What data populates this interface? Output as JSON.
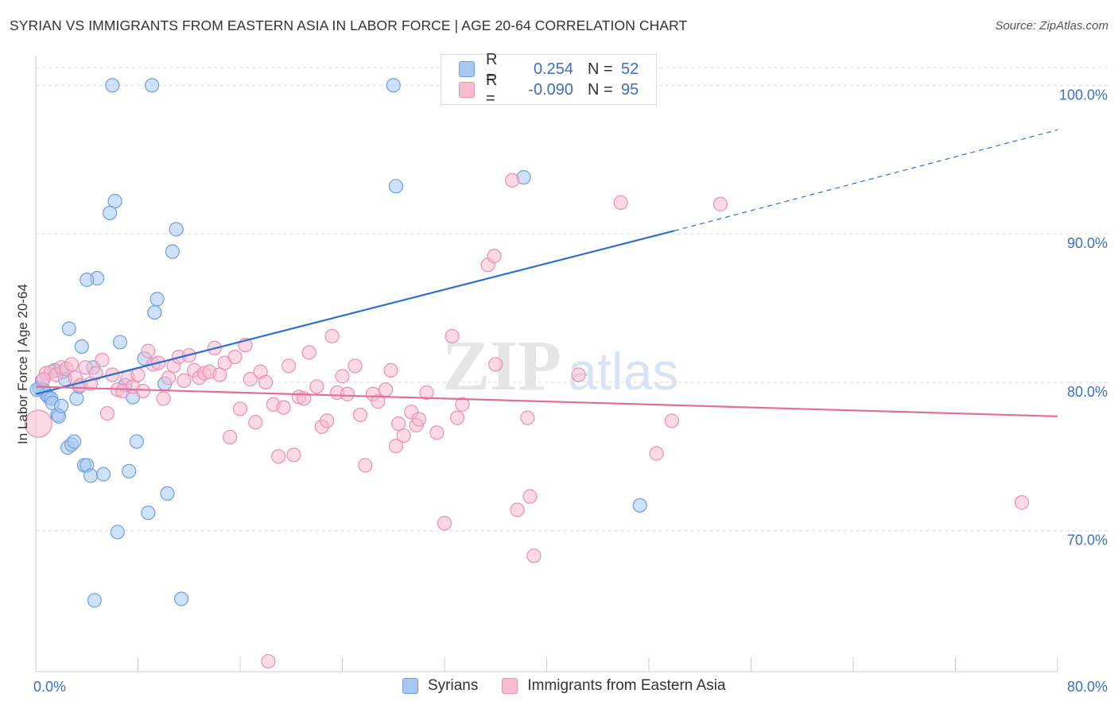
{
  "header": {
    "title": "SYRIAN VS IMMIGRANTS FROM EASTERN ASIA IN LABOR FORCE | AGE 20-64 CORRELATION CHART",
    "source": "Source: ZipAtlas.com"
  },
  "legend": {
    "rows": [
      {
        "r_label": "R =",
        "r_value": "0.254",
        "n_label": "N =",
        "n_value": "52"
      },
      {
        "r_label": "R =",
        "r_value": "-0.090",
        "n_label": "N =",
        "n_value": "95"
      }
    ],
    "bottom": [
      "Syrians",
      "Immigrants from Eastern Asia"
    ]
  },
  "watermark": {
    "zip": "ZIP",
    "atlas": "atlas"
  },
  "colors": {
    "blue_fill": "#a8c8f0",
    "blue_stroke": "#6d9fe0",
    "blue_line": "#2f6fd0",
    "pink_fill": "#f8bcd0",
    "pink_stroke": "#ec8fb0",
    "pink_line": "#e46e98",
    "axis_text": "#3a6fc4",
    "grid": "#dddddd"
  },
  "chart_data": {
    "type": "scatter",
    "title": "SYRIAN VS IMMIGRANTS FROM EASTERN ASIA IN LABOR FORCE | AGE 20-64 CORRELATION CHART",
    "xlabel": "",
    "ylabel": "In Labor Force | Age 20-64",
    "xlim": [
      0,
      80
    ],
    "ylim": [
      60.5,
      102
    ],
    "x_tick_labels": [
      "0.0%",
      "80.0%"
    ],
    "y_ticks": [
      70,
      80,
      90,
      100
    ],
    "y_tick_labels": [
      "70.0%",
      "80.0%",
      "90.0%",
      "100.0%"
    ],
    "series": [
      {
        "name": "Syrians",
        "color": "blue",
        "points": [
          [
            0.3,
            79.6
          ],
          [
            0.5,
            80.1
          ],
          [
            0.6,
            79.5
          ],
          [
            0.8,
            79.2
          ],
          [
            1.0,
            79.0
          ],
          [
            1.2,
            78.9
          ],
          [
            1.3,
            78.6
          ],
          [
            1.5,
            80.8
          ],
          [
            1.7,
            77.8
          ],
          [
            1.8,
            77.7
          ],
          [
            2.0,
            78.4
          ],
          [
            2.1,
            80.7
          ],
          [
            2.3,
            80.2
          ],
          [
            2.5,
            75.6
          ],
          [
            2.6,
            83.6
          ],
          [
            2.8,
            75.8
          ],
          [
            3.0,
            76.0
          ],
          [
            3.2,
            78.9
          ],
          [
            3.4,
            79.7
          ],
          [
            3.6,
            82.4
          ],
          [
            3.8,
            74.4
          ],
          [
            4.0,
            74.4
          ],
          [
            4.3,
            73.7
          ],
          [
            4.5,
            81.0
          ],
          [
            4.8,
            87.0
          ],
          [
            5.3,
            73.8
          ],
          [
            6.0,
            100.0
          ],
          [
            6.2,
            92.2
          ],
          [
            6.4,
            69.9
          ],
          [
            6.6,
            82.7
          ],
          [
            7.0,
            79.8
          ],
          [
            7.3,
            74.0
          ],
          [
            7.6,
            79.0
          ],
          [
            7.9,
            76.0
          ],
          [
            8.5,
            81.6
          ],
          [
            8.8,
            71.2
          ],
          [
            9.1,
            100.0
          ],
          [
            9.3,
            84.7
          ],
          [
            9.5,
            85.6
          ],
          [
            10.1,
            79.9
          ],
          [
            10.3,
            72.5
          ],
          [
            10.7,
            88.8
          ],
          [
            11.0,
            90.3
          ],
          [
            11.4,
            65.4
          ],
          [
            5.8,
            91.4
          ],
          [
            4.0,
            86.9
          ],
          [
            4.6,
            65.3
          ],
          [
            28.0,
            100.0
          ],
          [
            28.2,
            93.2
          ],
          [
            38.2,
            93.8
          ],
          [
            47.3,
            71.7
          ],
          [
            0.1,
            79.5
          ]
        ],
        "trend": {
          "x0": 0,
          "y0": 79.2,
          "x1": 50,
          "y1": 90.2,
          "dashed_to_x": 80,
          "dashed_to_y": 97.0
        }
      },
      {
        "name": "Immigrants from Eastern Asia",
        "color": "pink",
        "points": [
          [
            0.2,
            77.2
          ],
          [
            0.8,
            80.6
          ],
          [
            1.2,
            80.7
          ],
          [
            1.6,
            80.5
          ],
          [
            2.0,
            81.0
          ],
          [
            2.4,
            80.9
          ],
          [
            2.8,
            81.2
          ],
          [
            3.1,
            80.3
          ],
          [
            3.5,
            79.8
          ],
          [
            3.9,
            81.0
          ],
          [
            4.3,
            79.9
          ],
          [
            4.7,
            80.6
          ],
          [
            5.2,
            81.5
          ],
          [
            5.6,
            77.9
          ],
          [
            6.0,
            80.5
          ],
          [
            6.4,
            79.5
          ],
          [
            6.8,
            79.4
          ],
          [
            7.2,
            80.3
          ],
          [
            7.6,
            79.7
          ],
          [
            8.0,
            80.5
          ],
          [
            8.4,
            79.4
          ],
          [
            8.8,
            82.1
          ],
          [
            9.2,
            81.2
          ],
          [
            9.6,
            81.3
          ],
          [
            10.0,
            78.9
          ],
          [
            10.4,
            80.3
          ],
          [
            10.8,
            81.1
          ],
          [
            11.2,
            81.7
          ],
          [
            11.6,
            80.1
          ],
          [
            12.0,
            81.8
          ],
          [
            12.4,
            80.8
          ],
          [
            12.8,
            80.3
          ],
          [
            13.2,
            80.6
          ],
          [
            13.6,
            80.7
          ],
          [
            14.0,
            82.3
          ],
          [
            14.4,
            80.5
          ],
          [
            14.8,
            81.3
          ],
          [
            15.2,
            76.3
          ],
          [
            15.6,
            81.7
          ],
          [
            16.0,
            78.2
          ],
          [
            16.4,
            82.5
          ],
          [
            16.8,
            80.2
          ],
          [
            17.2,
            77.3
          ],
          [
            17.6,
            80.7
          ],
          [
            18.0,
            80.0
          ],
          [
            18.6,
            78.5
          ],
          [
            19.0,
            75.0
          ],
          [
            19.4,
            78.3
          ],
          [
            19.8,
            81.1
          ],
          [
            20.2,
            75.1
          ],
          [
            20.6,
            79.0
          ],
          [
            21.0,
            78.9
          ],
          [
            21.4,
            82.0
          ],
          [
            22.0,
            79.7
          ],
          [
            22.4,
            77.0
          ],
          [
            22.8,
            77.4
          ],
          [
            23.2,
            83.1
          ],
          [
            23.6,
            79.3
          ],
          [
            24.0,
            80.4
          ],
          [
            24.4,
            79.2
          ],
          [
            25.0,
            81.1
          ],
          [
            25.4,
            77.8
          ],
          [
            25.8,
            74.4
          ],
          [
            26.4,
            79.2
          ],
          [
            26.8,
            78.7
          ],
          [
            27.4,
            79.5
          ],
          [
            27.8,
            80.8
          ],
          [
            28.2,
            75.7
          ],
          [
            28.4,
            77.2
          ],
          [
            28.8,
            76.4
          ],
          [
            29.4,
            78.0
          ],
          [
            29.8,
            77.1
          ],
          [
            30.0,
            77.5
          ],
          [
            30.6,
            79.3
          ],
          [
            31.4,
            76.6
          ],
          [
            32.0,
            70.5
          ],
          [
            32.6,
            83.1
          ],
          [
            33.0,
            77.6
          ],
          [
            33.4,
            78.5
          ],
          [
            35.4,
            87.9
          ],
          [
            35.9,
            88.5
          ],
          [
            36.0,
            81.2
          ],
          [
            37.3,
            93.6
          ],
          [
            37.7,
            71.4
          ],
          [
            38.5,
            77.6
          ],
          [
            38.7,
            72.3
          ],
          [
            39.0,
            68.3
          ],
          [
            42.5,
            80.5
          ],
          [
            45.8,
            92.1
          ],
          [
            48.6,
            75.2
          ],
          [
            49.8,
            77.4
          ],
          [
            53.6,
            92.0
          ],
          [
            77.2,
            71.9
          ],
          [
            18.2,
            61.2
          ],
          [
            0.6,
            80.2
          ]
        ],
        "trend": {
          "x0": 0,
          "y0": 79.7,
          "x1": 80,
          "y1": 77.7
        }
      }
    ]
  }
}
